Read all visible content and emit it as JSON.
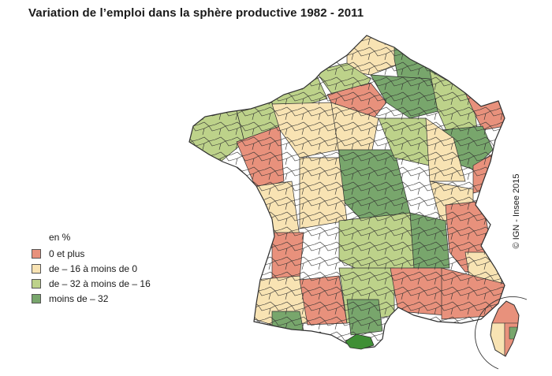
{
  "title": "Variation de l’emploi dans la sphère productive 1982 - 2011",
  "legend": {
    "unit": "en %",
    "classes": [
      {
        "label": "0 et plus",
        "color": "#e8917c"
      },
      {
        "label": "de – 16 à moins de 0",
        "color": "#f8e3b3"
      },
      {
        "label": "de – 32 à moins de – 16",
        "color": "#bdd28a"
      },
      {
        "label": "moins de – 32",
        "color": "#78a66c"
      }
    ]
  },
  "credit": "© IGN - Insee 2015",
  "highlight_color": "#3f8f35",
  "border_color": "#2f2f2f"
}
